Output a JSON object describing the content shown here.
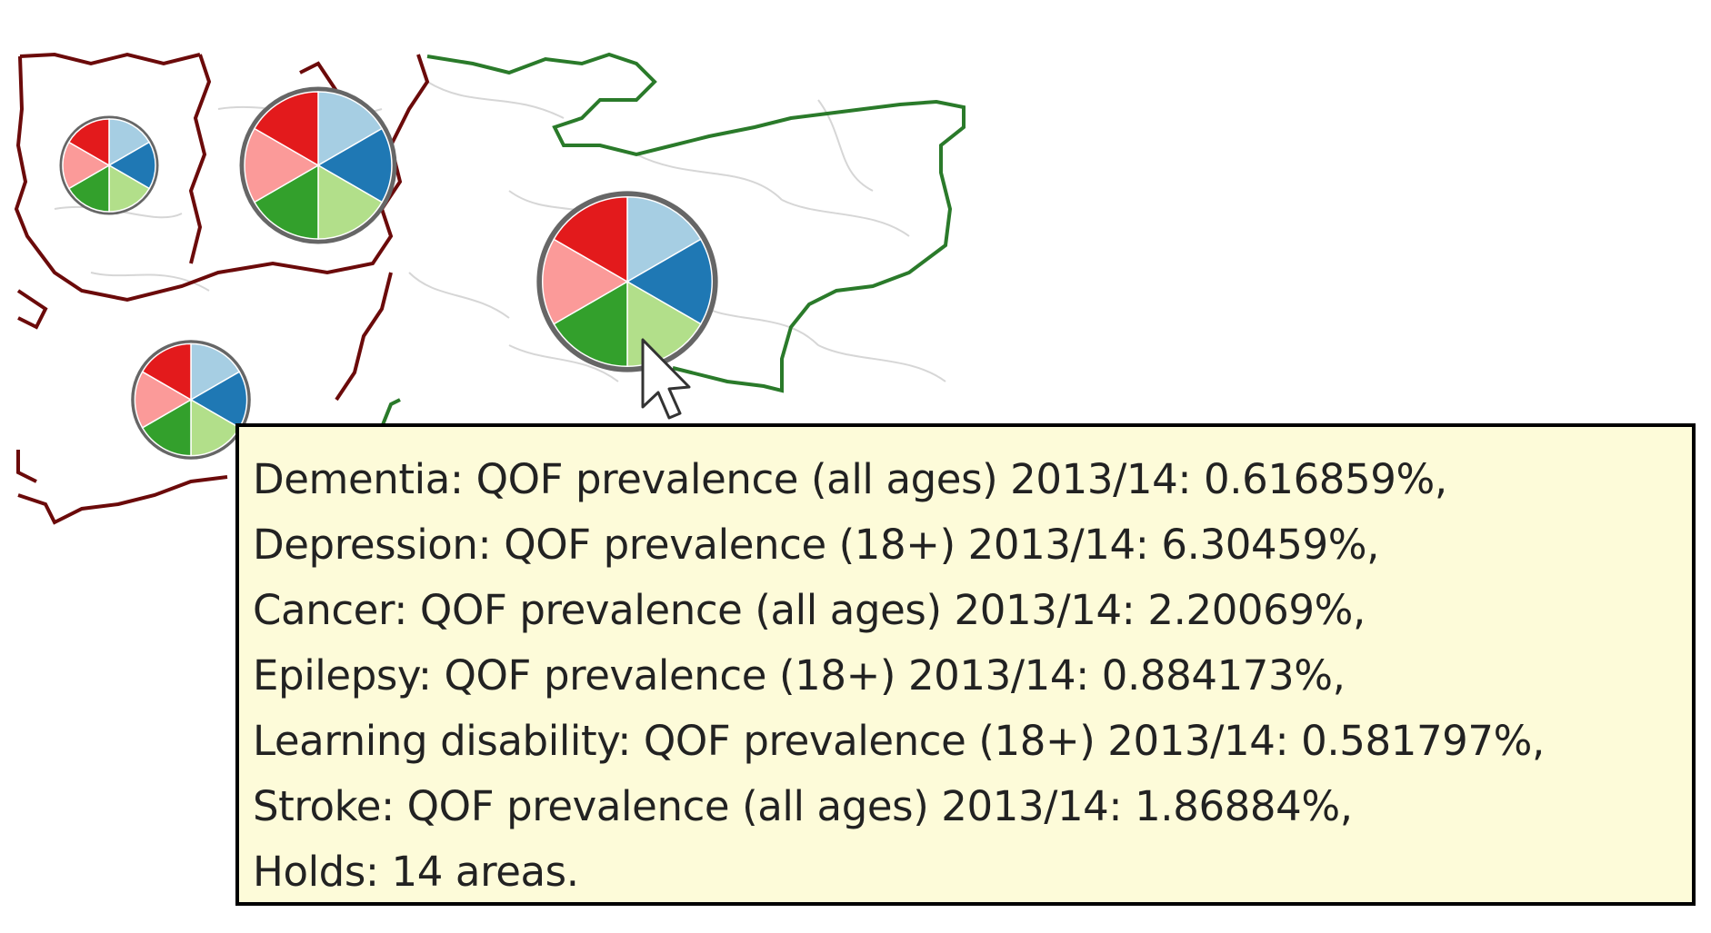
{
  "colors": {
    "dementia": "#e31a1c",
    "depression": "#a6cee3",
    "cancer": "#1f78b4",
    "epilepsy": "#b2df8a",
    "learning_disability": "#33a02c",
    "stroke": "#fb9a99",
    "holds_ring": "#666666",
    "boundary_dark": "#6b0a0a",
    "boundary_green": "#2a7a2a",
    "boundary_light": "#d6d6d6",
    "tooltip_bg": "#fdfbd9",
    "tooltip_border": "#000000"
  },
  "map": {
    "markers": [
      {
        "name": "marker-west",
        "holds_level": 0.3,
        "segments": [
          "dementia",
          "depression",
          "cancer",
          "epilepsy",
          "learning_disability",
          "stroke"
        ]
      },
      {
        "name": "marker-north",
        "holds_level": 0.8,
        "segments": [
          "dementia",
          "depression",
          "cancer",
          "epilepsy",
          "learning_disability",
          "stroke"
        ]
      },
      {
        "name": "marker-east",
        "holds_level": 0.95,
        "segments": [
          "dementia",
          "depression",
          "cancer",
          "epilepsy",
          "learning_disability",
          "stroke"
        ]
      },
      {
        "name": "marker-south",
        "holds_level": 0.25,
        "segments": [
          "dementia",
          "depression",
          "cancer",
          "epilepsy",
          "learning_disability",
          "stroke"
        ]
      }
    ]
  },
  "tooltip": {
    "lines": [
      "Dementia: QOF prevalence (all ages) 2013/14: 0.616859%,",
      "Depression: QOF prevalence (18+) 2013/14: 6.30459%,",
      "Cancer: QOF prevalence (all ages) 2013/14: 2.20069%,",
      "Epilepsy: QOF prevalence (18+) 2013/14: 0.884173%,",
      "Learning disability: QOF prevalence (18+) 2013/14: 0.581797%,",
      "Stroke: QOF prevalence (all ages) 2013/14: 1.86884%,",
      "Holds: 14 areas."
    ]
  }
}
